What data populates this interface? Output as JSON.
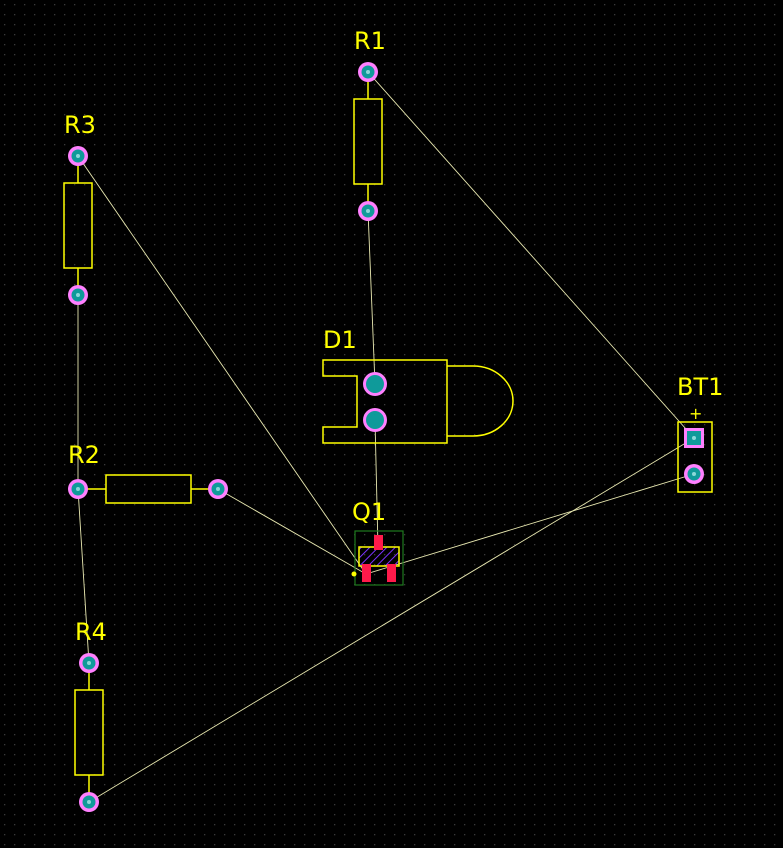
{
  "board": {
    "background_color": "#000000",
    "grid_dot_color": "#3a3a3a",
    "silkscreen_color": "#ffff00",
    "ratsnest_color": "#e8e8b0",
    "pad_ring_color": "#ff80ff",
    "pad_core_color": "#0f9a9a",
    "smd_pad_color": "#ff1a4a",
    "courtyard_color": "#1f7a1f",
    "hatch_color": "#7a33ff"
  },
  "components": {
    "r1": {
      "ref": "R1",
      "type": "resistor",
      "pads": 2,
      "orientation": "vertical"
    },
    "r2": {
      "ref": "R2",
      "type": "resistor",
      "pads": 2,
      "orientation": "horizontal"
    },
    "r3": {
      "ref": "R3",
      "type": "resistor",
      "pads": 2,
      "orientation": "vertical"
    },
    "r4": {
      "ref": "R4",
      "type": "resistor",
      "pads": 2,
      "orientation": "vertical"
    },
    "d1": {
      "ref": "D1",
      "type": "led",
      "pads": 2
    },
    "q1": {
      "ref": "Q1",
      "type": "transistor-smd",
      "pads": 3
    },
    "bt1": {
      "ref": "BT1",
      "type": "battery-connector",
      "pads": 2,
      "polarity_mark": "+"
    }
  },
  "nets": [
    {
      "from": "R1.1",
      "to": "BT1.1"
    },
    {
      "from": "R1.2",
      "to": "D1.1"
    },
    {
      "from": "D1.2",
      "to": "Q1.3"
    },
    {
      "from": "R3.1",
      "to": "Q1.1"
    },
    {
      "from": "R3.2",
      "to": "R2.1"
    },
    {
      "from": "R2.1",
      "to": "R4.1"
    },
    {
      "from": "R2.2",
      "to": "Q1.1"
    },
    {
      "from": "Q1.1",
      "to": "BT1.2"
    },
    {
      "from": "R4.2",
      "to": "BT1.1"
    }
  ]
}
